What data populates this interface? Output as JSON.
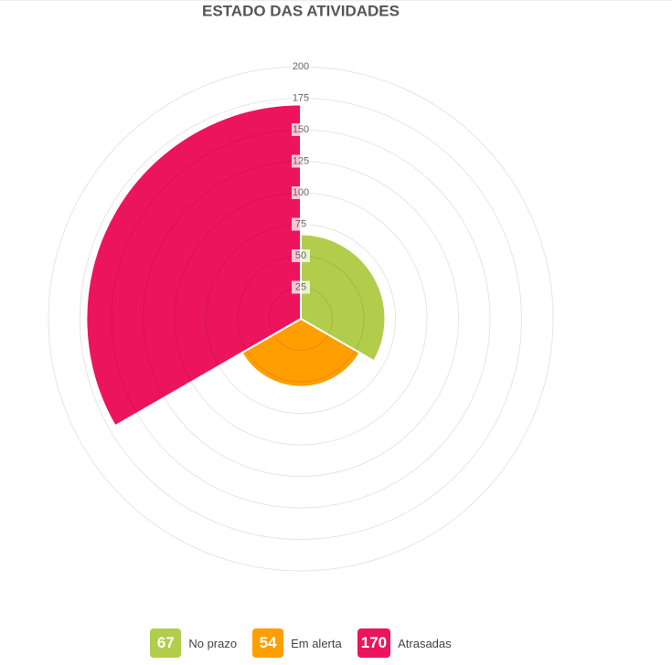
{
  "chart_data": {
    "type": "polarArea",
    "title": "ESTADO DAS ATIVIDADES",
    "categories": [
      "No prazo",
      "Em alerta",
      "Atrasadas"
    ],
    "values": [
      67,
      54,
      170
    ],
    "colors": [
      "#b2cd4b",
      "#ff9e00",
      "#ec145d"
    ],
    "ylim": [
      0,
      200
    ],
    "yticks": [
      25,
      50,
      75,
      100,
      125,
      150,
      175,
      200
    ],
    "grid": true
  }
}
